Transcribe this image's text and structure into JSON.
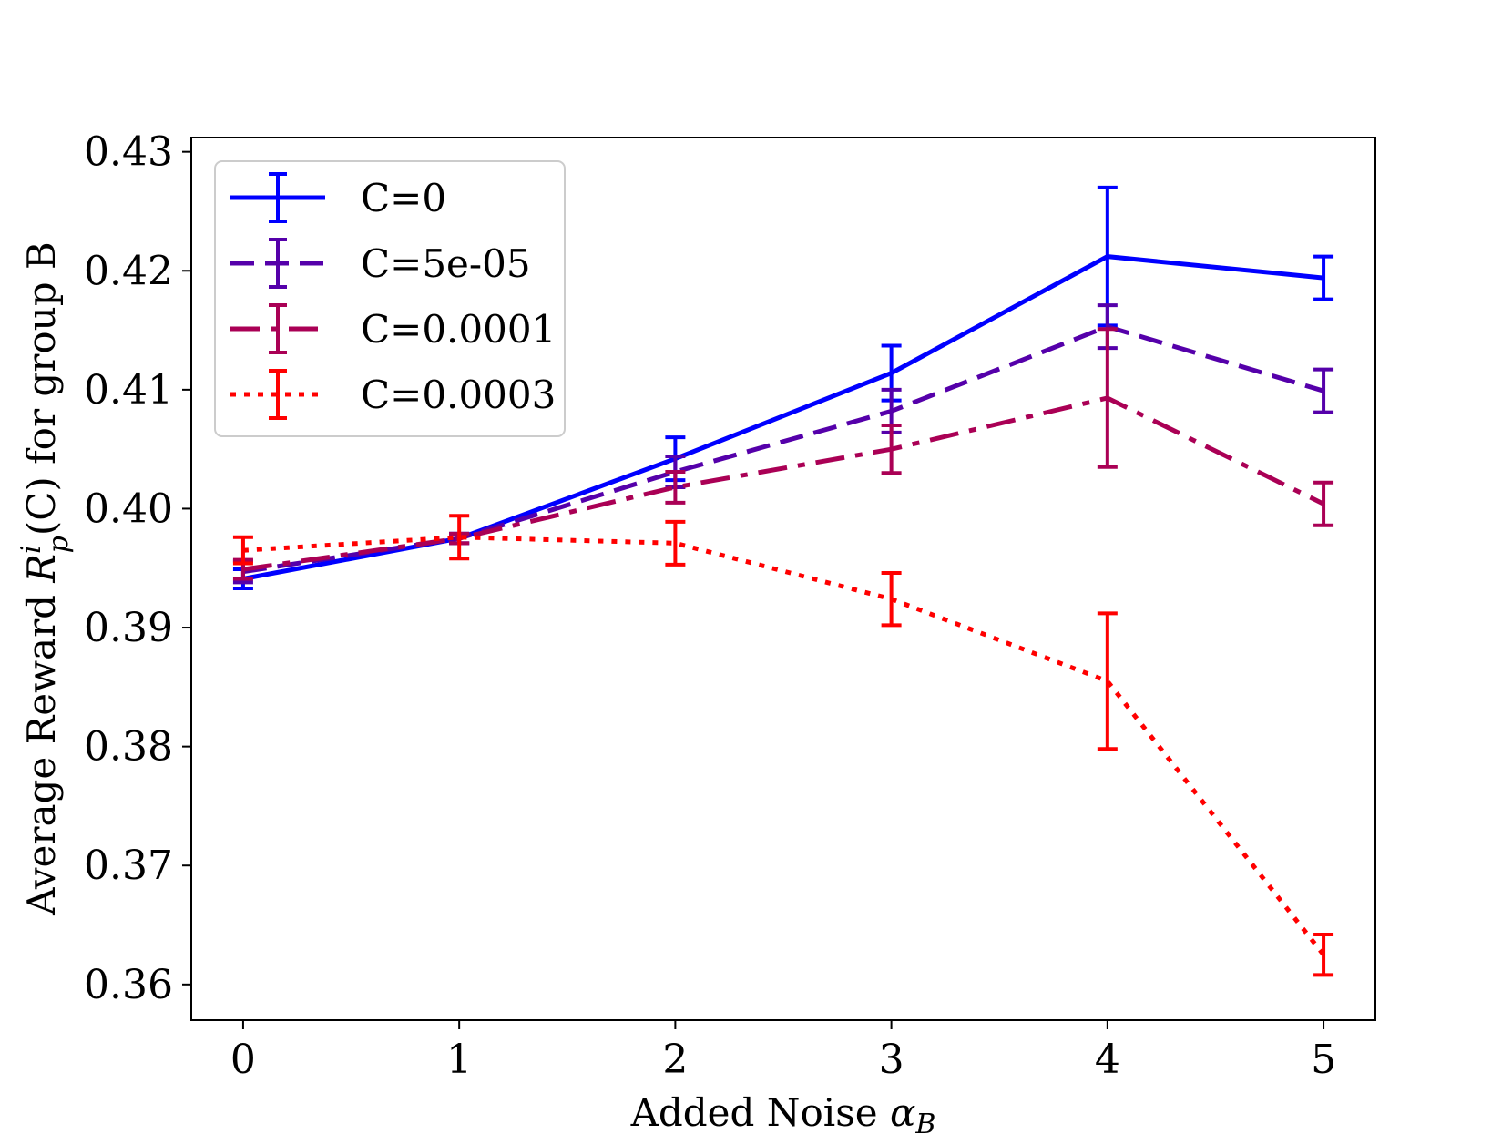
{
  "chart_data": {
    "type": "line",
    "title": "",
    "xlabel": "Added Noise",
    "xlabel_symbol": "α",
    "xlabel_subscript": "B",
    "ylabel": "Average Reward",
    "ylabel_symbol": "R",
    "ylabel_superscript": "i",
    "ylabel_subscript": "p",
    "ylabel_arg": "(C)",
    "ylabel_suffix": "for group B",
    "x": [
      0,
      1,
      2,
      3,
      4,
      5
    ],
    "xlim": [
      -0.24,
      5.24
    ],
    "ylim": [
      0.357,
      0.4312
    ],
    "xticks": [
      0,
      1,
      2,
      3,
      4,
      5
    ],
    "yticks": [
      0.36,
      0.37,
      0.38,
      0.39,
      0.4,
      0.41,
      0.42,
      0.43
    ],
    "ytick_labels": [
      "0.36",
      "0.37",
      "0.38",
      "0.39",
      "0.40",
      "0.41",
      "0.42",
      "0.43"
    ],
    "legend_position": "top-left",
    "grid": false,
    "series": [
      {
        "name": "C=0",
        "color": "#0000ff",
        "style": "solid",
        "values": [
          0.3941,
          0.3975,
          0.4042,
          0.4114,
          0.4212,
          0.4194
        ],
        "errors": [
          0.0008,
          0.0004,
          0.0018,
          0.0023,
          0.0058,
          0.0018
        ]
      },
      {
        "name": "C=5e-05",
        "color": "#5500aa",
        "style": "dashed",
        "values": [
          0.3947,
          0.3975,
          0.4031,
          0.4082,
          0.4153,
          0.4099
        ],
        "errors": [
          0.0009,
          0.0004,
          0.0013,
          0.0018,
          0.0018,
          0.0018
        ]
      },
      {
        "name": "C=0.0001",
        "color": "#aa0055",
        "style": "dashdot",
        "values": [
          0.3949,
          0.3975,
          0.4018,
          0.405,
          0.4093,
          0.4004
        ],
        "errors": [
          0.0008,
          0.0004,
          0.0013,
          0.002,
          0.0058,
          0.0018
        ]
      },
      {
        "name": "C=0.0003",
        "color": "#ff0000",
        "style": "dotted",
        "values": [
          0.3965,
          0.3976,
          0.3971,
          0.3924,
          0.3855,
          0.3625
        ],
        "errors": [
          0.0011,
          0.0018,
          0.0018,
          0.0022,
          0.0057,
          0.0017
        ]
      }
    ]
  }
}
